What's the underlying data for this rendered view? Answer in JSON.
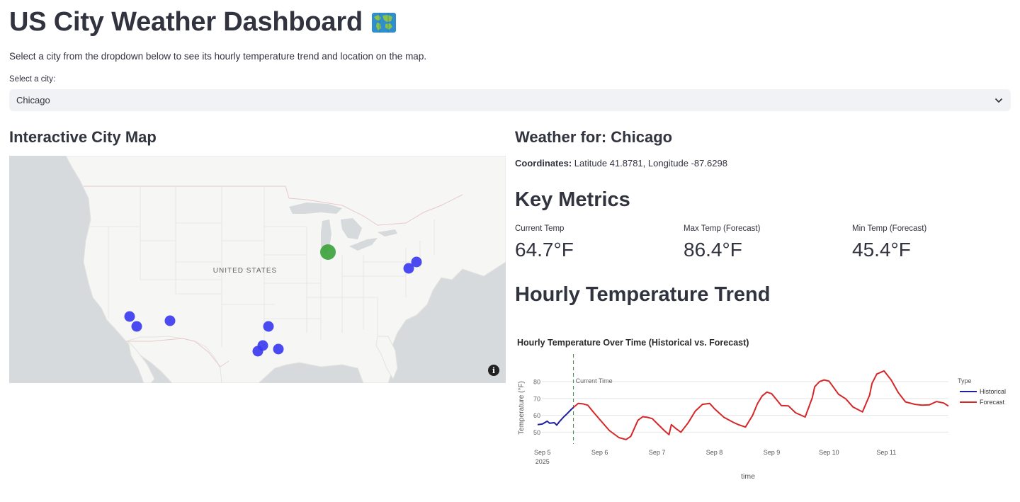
{
  "header": {
    "title": "US City Weather Dashboard",
    "title_icon": "world-map-icon",
    "intro": "Select a city from the dropdown below to see its hourly temperature trend and location on the map."
  },
  "city_select": {
    "label": "Select a city:",
    "value": "Chicago",
    "icon": "chevron-down-icon"
  },
  "map_section": {
    "title": "Interactive City Map",
    "country_label": "UNITED STATES",
    "selected_city": "Chicago",
    "colors": {
      "selected": "#3da33d",
      "other": "#3b3bef",
      "water": "#d7dadd",
      "land": "#f7f7f5"
    }
  },
  "weather_section": {
    "title_prefix": "Weather for: ",
    "city": "Chicago",
    "coords_label": "Coordinates:",
    "coords_text": "Latitude 41.8781, Longitude -87.6298"
  },
  "metrics": {
    "title": "Key Metrics",
    "items": [
      {
        "label": "Current Temp",
        "value": "64.7°F"
      },
      {
        "label": "Max Temp (Forecast)",
        "value": "86.4°F"
      },
      {
        "label": "Min Temp (Forecast)",
        "value": "45.4°F"
      }
    ]
  },
  "trend": {
    "title": "Hourly Temperature Trend"
  },
  "chart_data": {
    "type": "line",
    "title": "Hourly Temperature Over Time (Historical vs. Forecast)",
    "xlabel": "time",
    "ylabel": "Temperature (°F)",
    "x_ticks": [
      "Sep 5",
      "Sep 6",
      "Sep 7",
      "Sep 8",
      "Sep 9",
      "Sep 10",
      "Sep 11"
    ],
    "x_year_label": "2025",
    "y_ticks": [
      50,
      60,
      70,
      80
    ],
    "ylim": [
      43,
      88
    ],
    "xlim": [
      "2025-09-04T22:00",
      "2025-09-12T02:00"
    ],
    "grid": true,
    "legend_title": "Type",
    "legend_placement": "top-right",
    "annotation": {
      "text": "Current Time",
      "x": "2025-09-05T13:00"
    },
    "series": [
      {
        "name": "Historical",
        "color": "#1f1f9f",
        "x": [
          "2025-09-04T22:00",
          "2025-09-05T00:00",
          "2025-09-05T02:00",
          "2025-09-05T03:00",
          "2025-09-05T05:00",
          "2025-09-05T06:00",
          "2025-09-05T07:00",
          "2025-09-05T09:00",
          "2025-09-05T10:00",
          "2025-09-05T12:00",
          "2025-09-05T13:00"
        ],
        "y": [
          54.5,
          54.8,
          56.5,
          55.3,
          55.6,
          54.2,
          56.0,
          59.2,
          60.5,
          63.4,
          64.7
        ]
      },
      {
        "name": "Forecast",
        "color": "#d62728",
        "x": [
          "2025-09-05T13:00",
          "2025-09-05T15:00",
          "2025-09-05T17:00",
          "2025-09-05T19:00",
          "2025-09-05T21:00",
          "2025-09-06T00:00",
          "2025-09-06T04:00",
          "2025-09-06T08:00",
          "2025-09-06T11:00",
          "2025-09-06T13:00",
          "2025-09-06T16:00",
          "2025-09-06T18:00",
          "2025-09-06T20:00",
          "2025-09-06T22:00",
          "2025-09-07T00:00",
          "2025-09-07T03:00",
          "2025-09-07T05:00",
          "2025-09-07T06:00",
          "2025-09-07T08:00",
          "2025-09-07T10:00",
          "2025-09-07T13:00",
          "2025-09-07T16:00",
          "2025-09-07T19:00",
          "2025-09-07T22:00",
          "2025-09-08T00:00",
          "2025-09-08T04:00",
          "2025-09-08T08:00",
          "2025-09-08T10:00",
          "2025-09-08T13:00",
          "2025-09-08T16:00",
          "2025-09-08T18:00",
          "2025-09-08T20:00",
          "2025-09-08T22:00",
          "2025-09-09T00:00",
          "2025-09-09T04:00",
          "2025-09-09T07:00",
          "2025-09-09T10:00",
          "2025-09-09T14:00",
          "2025-09-09T17:00",
          "2025-09-09T18:00",
          "2025-09-09T20:00",
          "2025-09-09T22:00",
          "2025-09-10T00:00",
          "2025-09-10T04:00",
          "2025-09-10T07:00",
          "2025-09-10T10:00",
          "2025-09-10T14:00",
          "2025-09-10T17:00",
          "2025-09-10T18:00",
          "2025-09-10T20:00",
          "2025-09-10T23:00",
          "2025-09-11T02:00",
          "2025-09-11T05:00",
          "2025-09-11T08:00",
          "2025-09-11T12:00",
          "2025-09-11T15:00",
          "2025-09-11T18:00",
          "2025-09-11T21:00",
          "2025-09-12T00:00",
          "2025-09-12T02:00"
        ],
        "y": [
          64.7,
          67.1,
          66.8,
          66.0,
          62.5,
          57.5,
          51.0,
          46.8,
          45.6,
          47.5,
          57.0,
          59.2,
          58.8,
          58.0,
          55.2,
          51.0,
          48.5,
          54.5,
          52.0,
          50.0,
          55.5,
          62.5,
          66.5,
          67.1,
          64.0,
          58.8,
          55.8,
          54.5,
          53.0,
          60.0,
          66.8,
          71.5,
          73.8,
          72.8,
          65.8,
          65.6,
          61.5,
          59.0,
          70.5,
          77.0,
          80.0,
          81.0,
          80.3,
          72.5,
          69.8,
          65.0,
          62.0,
          72.0,
          79.0,
          84.5,
          86.4,
          81.0,
          73.5,
          68.0,
          66.5,
          66.0,
          66.2,
          68.2,
          67.3,
          65.5
        ]
      }
    ]
  }
}
